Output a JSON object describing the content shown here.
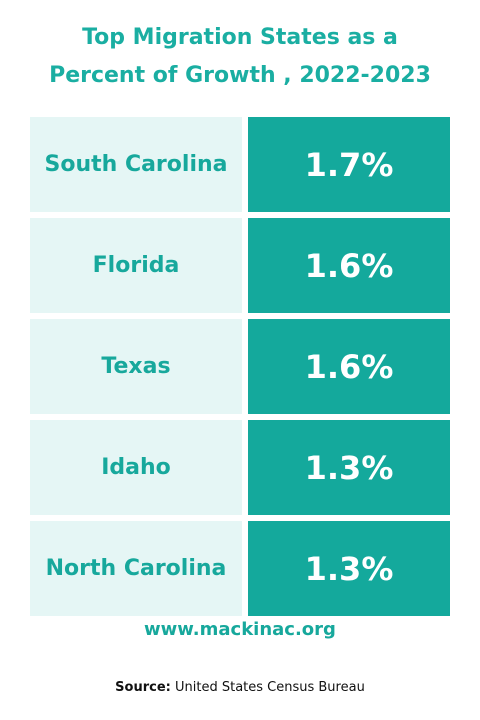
{
  "header": {
    "title_lines": [
      "Top Migration States as a",
      "Percent of Growth , 2022-2023"
    ]
  },
  "table": {
    "rows": [
      [
        "South Carolina",
        "1.7%"
      ],
      [
        "Florida",
        "1.6%"
      ],
      [
        "Texas",
        "1.6%"
      ],
      [
        "Idaho",
        "1.3%"
      ],
      [
        "North Carolina",
        "1.3%"
      ]
    ]
  },
  "footer": {
    "website": "www.mackinac.org",
    "source_label": "Source:",
    "source_text": "United States Census Bureau"
  }
}
